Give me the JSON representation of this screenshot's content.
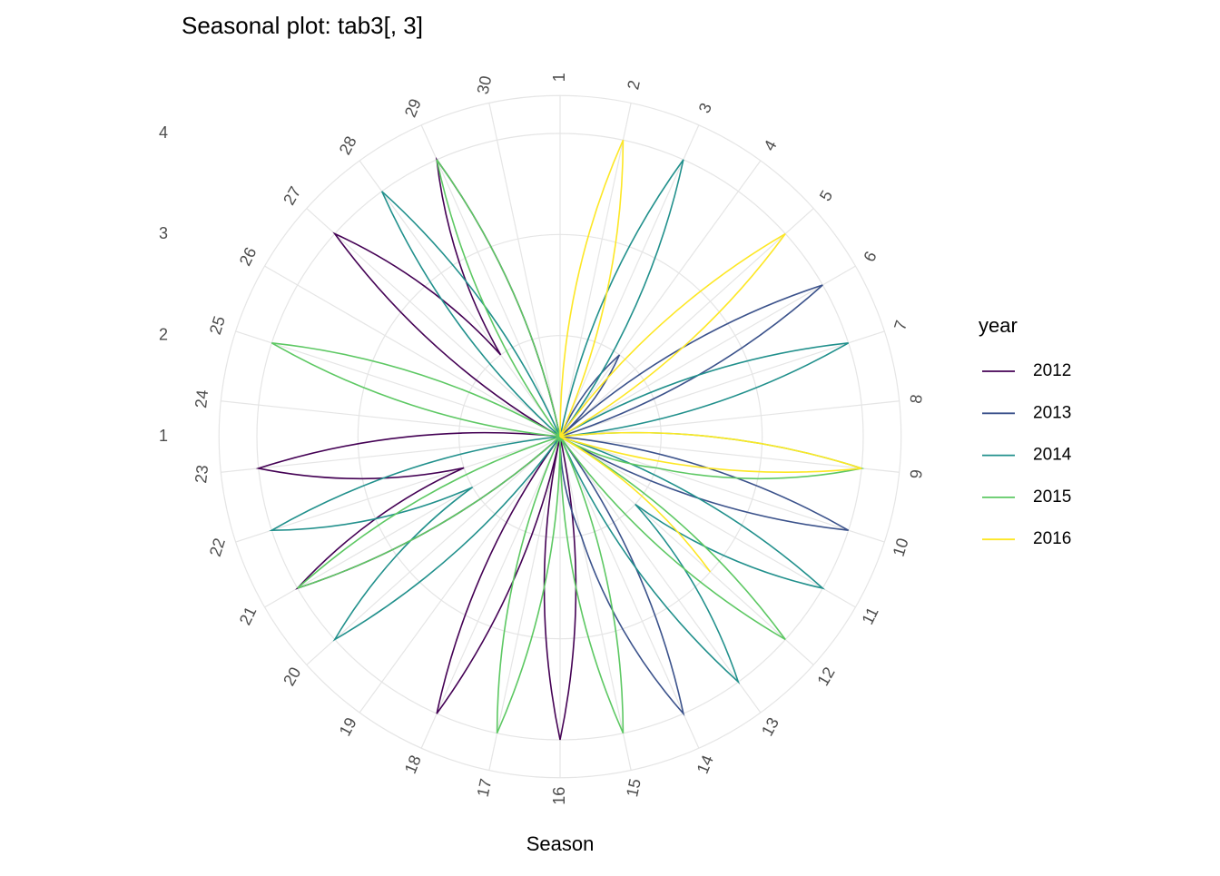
{
  "chart_data": {
    "type": "line",
    "polar": true,
    "title": "Seasonal plot: tab3[, 3]",
    "xlabel": "Season",
    "legend_title": "year",
    "x": [
      1,
      2,
      3,
      4,
      5,
      6,
      7,
      8,
      9,
      10,
      11,
      12,
      13,
      14,
      15,
      16,
      17,
      18,
      19,
      20,
      21,
      22,
      23,
      24,
      25,
      26,
      27,
      28,
      29,
      30
    ],
    "ylim": [
      1,
      4
    ],
    "yticks": [
      1,
      2,
      3,
      4
    ],
    "grid": true,
    "series": [
      {
        "name": "2012",
        "color": "#440154",
        "values": [
          null,
          null,
          null,
          null,
          null,
          null,
          null,
          null,
          null,
          null,
          null,
          null,
          null,
          null,
          1,
          4,
          1,
          4,
          1,
          1,
          4,
          2,
          4,
          1,
          1,
          1,
          4,
          2,
          4,
          1
        ]
      },
      {
        "name": "2013",
        "color": "#3B528B",
        "values": [
          1,
          1,
          1,
          2,
          1,
          4,
          1,
          1,
          1,
          4,
          1,
          1,
          1,
          4,
          2,
          1,
          1,
          1,
          1,
          1,
          1,
          1,
          1,
          1,
          1,
          1,
          1,
          1,
          1,
          1
        ]
      },
      {
        "name": "2014",
        "color": "#21908C",
        "values": [
          1,
          1,
          4,
          1,
          1,
          1,
          4,
          1,
          1,
          1,
          4,
          2,
          4,
          1,
          1,
          1,
          1,
          1,
          1,
          4,
          2,
          4,
          1,
          1,
          1,
          1,
          1,
          4,
          1,
          1
        ]
      },
      {
        "name": "2015",
        "color": "#5DC863",
        "values": [
          1,
          1,
          1,
          1,
          1,
          1,
          1,
          1,
          4,
          2,
          1,
          4,
          1,
          1,
          4,
          1,
          4,
          1,
          1,
          1,
          4,
          1,
          1,
          1,
          4,
          1,
          1,
          1,
          4,
          1
        ]
      },
      {
        "name": "2016",
        "color": "#FDE725",
        "values": [
          1,
          4,
          1,
          1,
          4,
          1,
          1,
          1,
          4,
          1,
          1,
          3,
          null,
          null,
          null,
          null,
          null,
          null,
          null,
          null,
          null,
          null,
          null,
          null,
          null,
          null,
          null,
          null,
          null,
          null
        ]
      }
    ]
  }
}
